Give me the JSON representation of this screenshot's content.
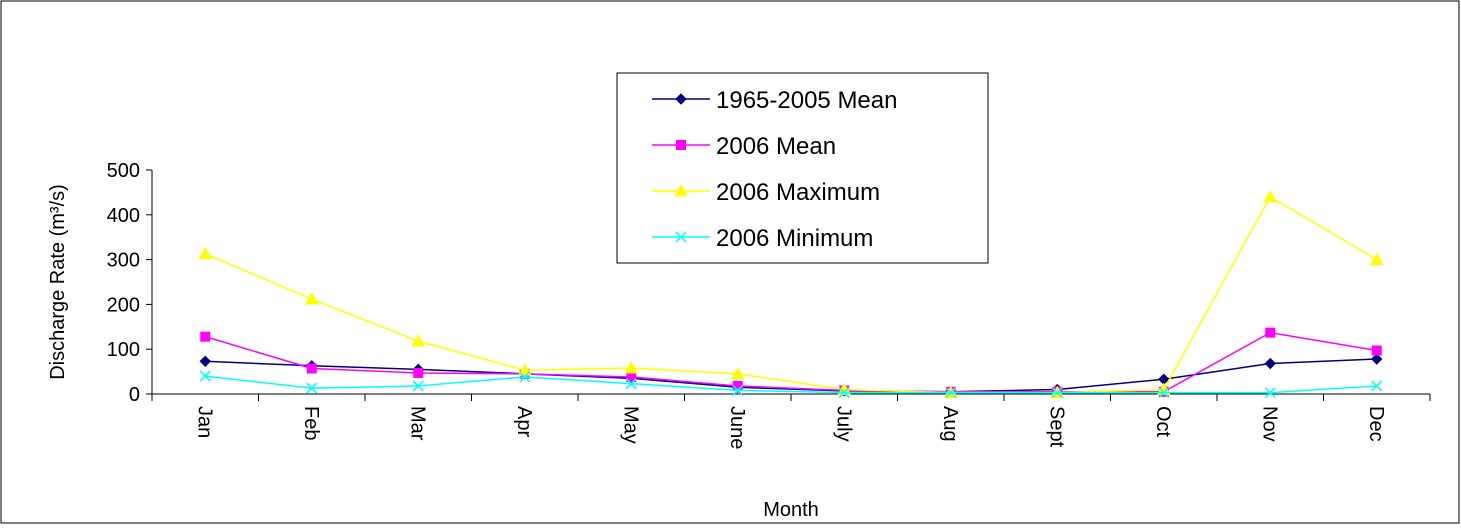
{
  "chart_data": {
    "type": "line",
    "x_label": "Month",
    "y_label": "Discharge Rate (m³/s)",
    "categories": [
      "Jan",
      "Feb",
      "Mar",
      "Apr",
      "May",
      "June",
      "July",
      "Aug",
      "Sept",
      "Oct",
      "Nov",
      "Dec"
    ],
    "series": [
      {
        "name": "1965-2005 Mean",
        "color": "#000080",
        "marker": "diamond",
        "values": [
          73,
          63,
          55,
          45,
          35,
          15,
          7,
          5,
          10,
          33,
          68,
          78
        ]
      },
      {
        "name": "2006 Mean",
        "color": "#ff00ff",
        "marker": "square",
        "values": [
          128,
          57,
          47,
          45,
          38,
          18,
          8,
          5,
          5,
          5,
          137,
          97
        ]
      },
      {
        "name": "2006 Maximum",
        "color": "#ffff00",
        "marker": "triangle",
        "values": [
          313,
          212,
          118,
          53,
          58,
          45,
          10,
          3,
          3,
          10,
          440,
          300
        ]
      },
      {
        "name": "2006 Minimum",
        "color": "#00ffff",
        "marker": "x",
        "values": [
          40,
          13,
          18,
          38,
          23,
          8,
          3,
          3,
          3,
          3,
          3,
          18
        ]
      }
    ],
    "ylim": [
      0,
      500
    ],
    "yticks": [
      0,
      100,
      200,
      300,
      400,
      500
    ],
    "grid": false,
    "legend": "top-center"
  }
}
